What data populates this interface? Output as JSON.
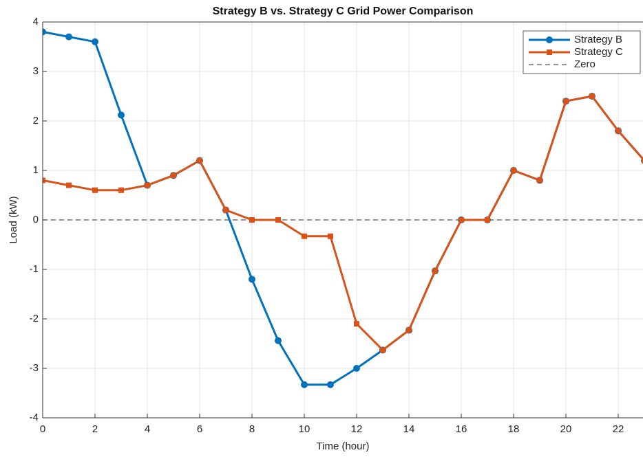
{
  "chart_data": {
    "type": "line",
    "title": "Strategy B vs. Strategy C Grid Power Comparison",
    "xlabel": "Time (hour)",
    "ylabel": "Load (kW)",
    "x": [
      0,
      1,
      2,
      3,
      4,
      5,
      6,
      7,
      8,
      9,
      10,
      11,
      12,
      13,
      14,
      15,
      16,
      17,
      18,
      19,
      20,
      21,
      22,
      23
    ],
    "series": [
      {
        "name": "Strategy B",
        "color": "#0072bd",
        "marker": "circle",
        "values": [
          3.8,
          3.7,
          3.6,
          2.12,
          0.7,
          0.9,
          1.2,
          0.2,
          -1.2,
          -2.44,
          -3.33,
          -3.33,
          -3.0,
          -2.63,
          -2.23,
          -1.03,
          0,
          0,
          1.0,
          0.8,
          2.4,
          2.5,
          1.8,
          1.2
        ]
      },
      {
        "name": "Strategy C",
        "color": "#d95319",
        "marker": "square",
        "values": [
          0.8,
          0.7,
          0.6,
          0.6,
          0.7,
          0.9,
          1.2,
          0.2,
          0,
          0,
          -0.33,
          -0.33,
          -2.1,
          -2.63,
          -2.23,
          -1.03,
          0,
          0,
          1.0,
          0.8,
          2.4,
          2.5,
          1.8,
          1.2
        ]
      }
    ],
    "reference_lines": [
      {
        "name": "Zero",
        "value": 0,
        "color": "#555555",
        "dashed": true
      }
    ],
    "xlim": [
      0,
      23
    ],
    "ylim": [
      -4,
      4
    ],
    "xticks": [
      0,
      2,
      4,
      6,
      8,
      10,
      12,
      14,
      16,
      18,
      20,
      22
    ],
    "yticks": [
      -4,
      -3,
      -2,
      -1,
      0,
      1,
      2,
      3,
      4
    ],
    "grid": true,
    "legend": "upper right"
  }
}
